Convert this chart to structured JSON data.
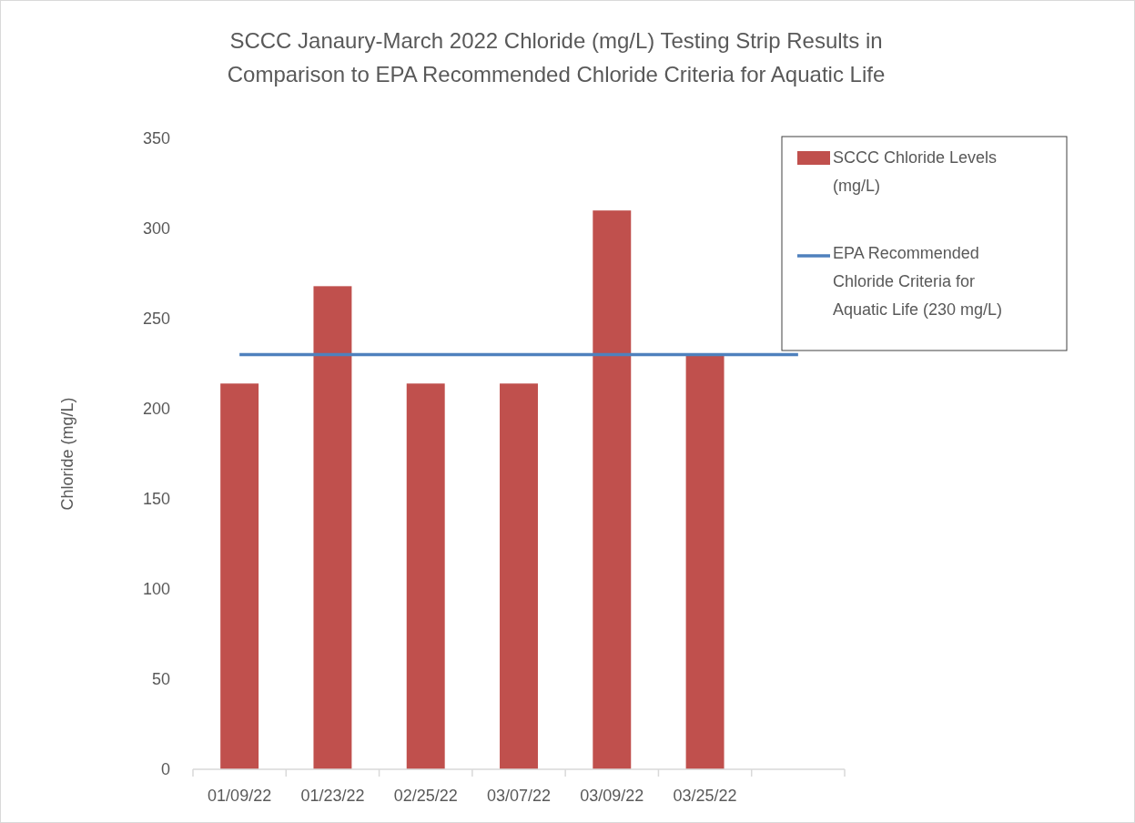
{
  "chart_data": {
    "type": "bar",
    "title": "SCCC Janaury-March 2022 Chloride (mg/L) Testing Strip Results in Comparison to EPA Recommended Chloride Criteria for Aquatic Life",
    "ylabel": "Chloride (mg/L)",
    "categories": [
      "01/09/22",
      "01/23/22",
      "02/25/22",
      "03/07/22",
      "03/09/22",
      "03/25/22",
      null
    ],
    "series": [
      {
        "name": "SCCC Chloride Levels (mg/L)",
        "color": "#c0504d",
        "values": [
          214,
          268,
          214,
          214,
          310,
          230,
          null
        ]
      },
      {
        "name": "EPA Recommended Chloride Criteria for Aquatic Life (230 mg/L)",
        "type": "line",
        "color": "#4f81bd",
        "values": [
          230,
          230,
          230,
          230,
          230,
          230,
          230
        ]
      }
    ],
    "ylim": [
      0,
      350
    ],
    "yticks": [
      0,
      50,
      100,
      150,
      200,
      250,
      300,
      350
    ],
    "grid": false,
    "legend": "top right"
  }
}
